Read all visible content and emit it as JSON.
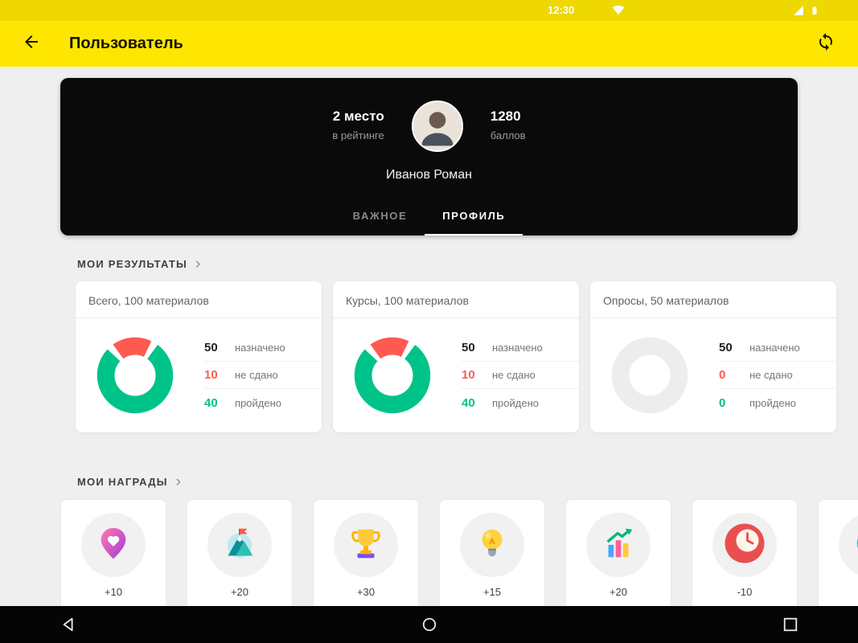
{
  "theme": {
    "yellow": "#ffe600",
    "status_yellow": "#eed800",
    "bg": "#efefef",
    "card_black": "#0a0a0a",
    "green": "#00c389",
    "red": "#ff5a52",
    "text_dark": "#212121",
    "text_gray": "#757575",
    "track": "#ededed"
  },
  "status_bar": {
    "time": "12:30",
    "icons": [
      "wifi-icon",
      "cellular-signal-icon",
      "battery-icon"
    ]
  },
  "app_bar": {
    "title": "Пользователь",
    "left_icon": "back-arrow-icon",
    "right_icon": "sync-icon"
  },
  "profile": {
    "rank_value": "2 место",
    "rank_label": "в рейтинге",
    "points_value": "1280",
    "points_label": "баллов",
    "name": "Иванов Роман",
    "tabs": [
      {
        "label": "ВАЖНОЕ",
        "active": false
      },
      {
        "label": "ПРОФИЛЬ",
        "active": true
      }
    ]
  },
  "results": {
    "title": "МОИ РЕЗУЛЬТАТЫ",
    "cards": [
      {
        "title": "Всего, 100 материалов",
        "rows": [
          {
            "value": "50",
            "label": "назначено"
          },
          {
            "value": "10",
            "label": "не сдано"
          },
          {
            "value": "40",
            "label": "пройдено"
          }
        ],
        "donut": {
          "start": -10,
          "segments": [
            {
              "color": "#ff5a52",
              "pct": 17
            },
            {
              "color": "#ffffff",
              "pct": 3
            },
            {
              "color": "#00c389",
              "pct": 77
            },
            {
              "color": "#ffffff",
              "pct": 3
            }
          ]
        }
      },
      {
        "title": "Курсы, 100 материалов",
        "rows": [
          {
            "value": "50",
            "label": "назначено"
          },
          {
            "value": "10",
            "label": "не сдано"
          },
          {
            "value": "40",
            "label": "пройдено"
          }
        ],
        "donut": {
          "start": -10,
          "segments": [
            {
              "color": "#ff5a52",
              "pct": 17
            },
            {
              "color": "#ffffff",
              "pct": 3
            },
            {
              "color": "#00c389",
              "pct": 77
            },
            {
              "color": "#ffffff",
              "pct": 3
            }
          ]
        }
      },
      {
        "title": "Опросы, 50 материалов",
        "rows": [
          {
            "value": "50",
            "label": "назначено"
          },
          {
            "value": "0",
            "label": "не сдано"
          },
          {
            "value": "0",
            "label": "пройдено"
          }
        ],
        "donut": {
          "start": 0,
          "segments": [
            {
              "color": "#ededed",
              "pct": 100
            }
          ]
        }
      }
    ]
  },
  "awards": {
    "title": "МОИ НАГРАДЫ",
    "items": [
      {
        "points": "+10",
        "icon": "heart-pin-badge-icon"
      },
      {
        "points": "+20",
        "icon": "mountain-flag-badge-icon"
      },
      {
        "points": "+30",
        "icon": "trophy-badge-icon"
      },
      {
        "points": "+15",
        "icon": "lightbulb-badge-icon"
      },
      {
        "points": "+20",
        "icon": "growth-chart-badge-icon"
      },
      {
        "points": "-10",
        "icon": "clock-badge-icon"
      },
      {
        "points": "",
        "icon": "partial-badge-icon"
      }
    ]
  },
  "nav_bar": {
    "items": [
      "back",
      "home",
      "recents"
    ]
  }
}
